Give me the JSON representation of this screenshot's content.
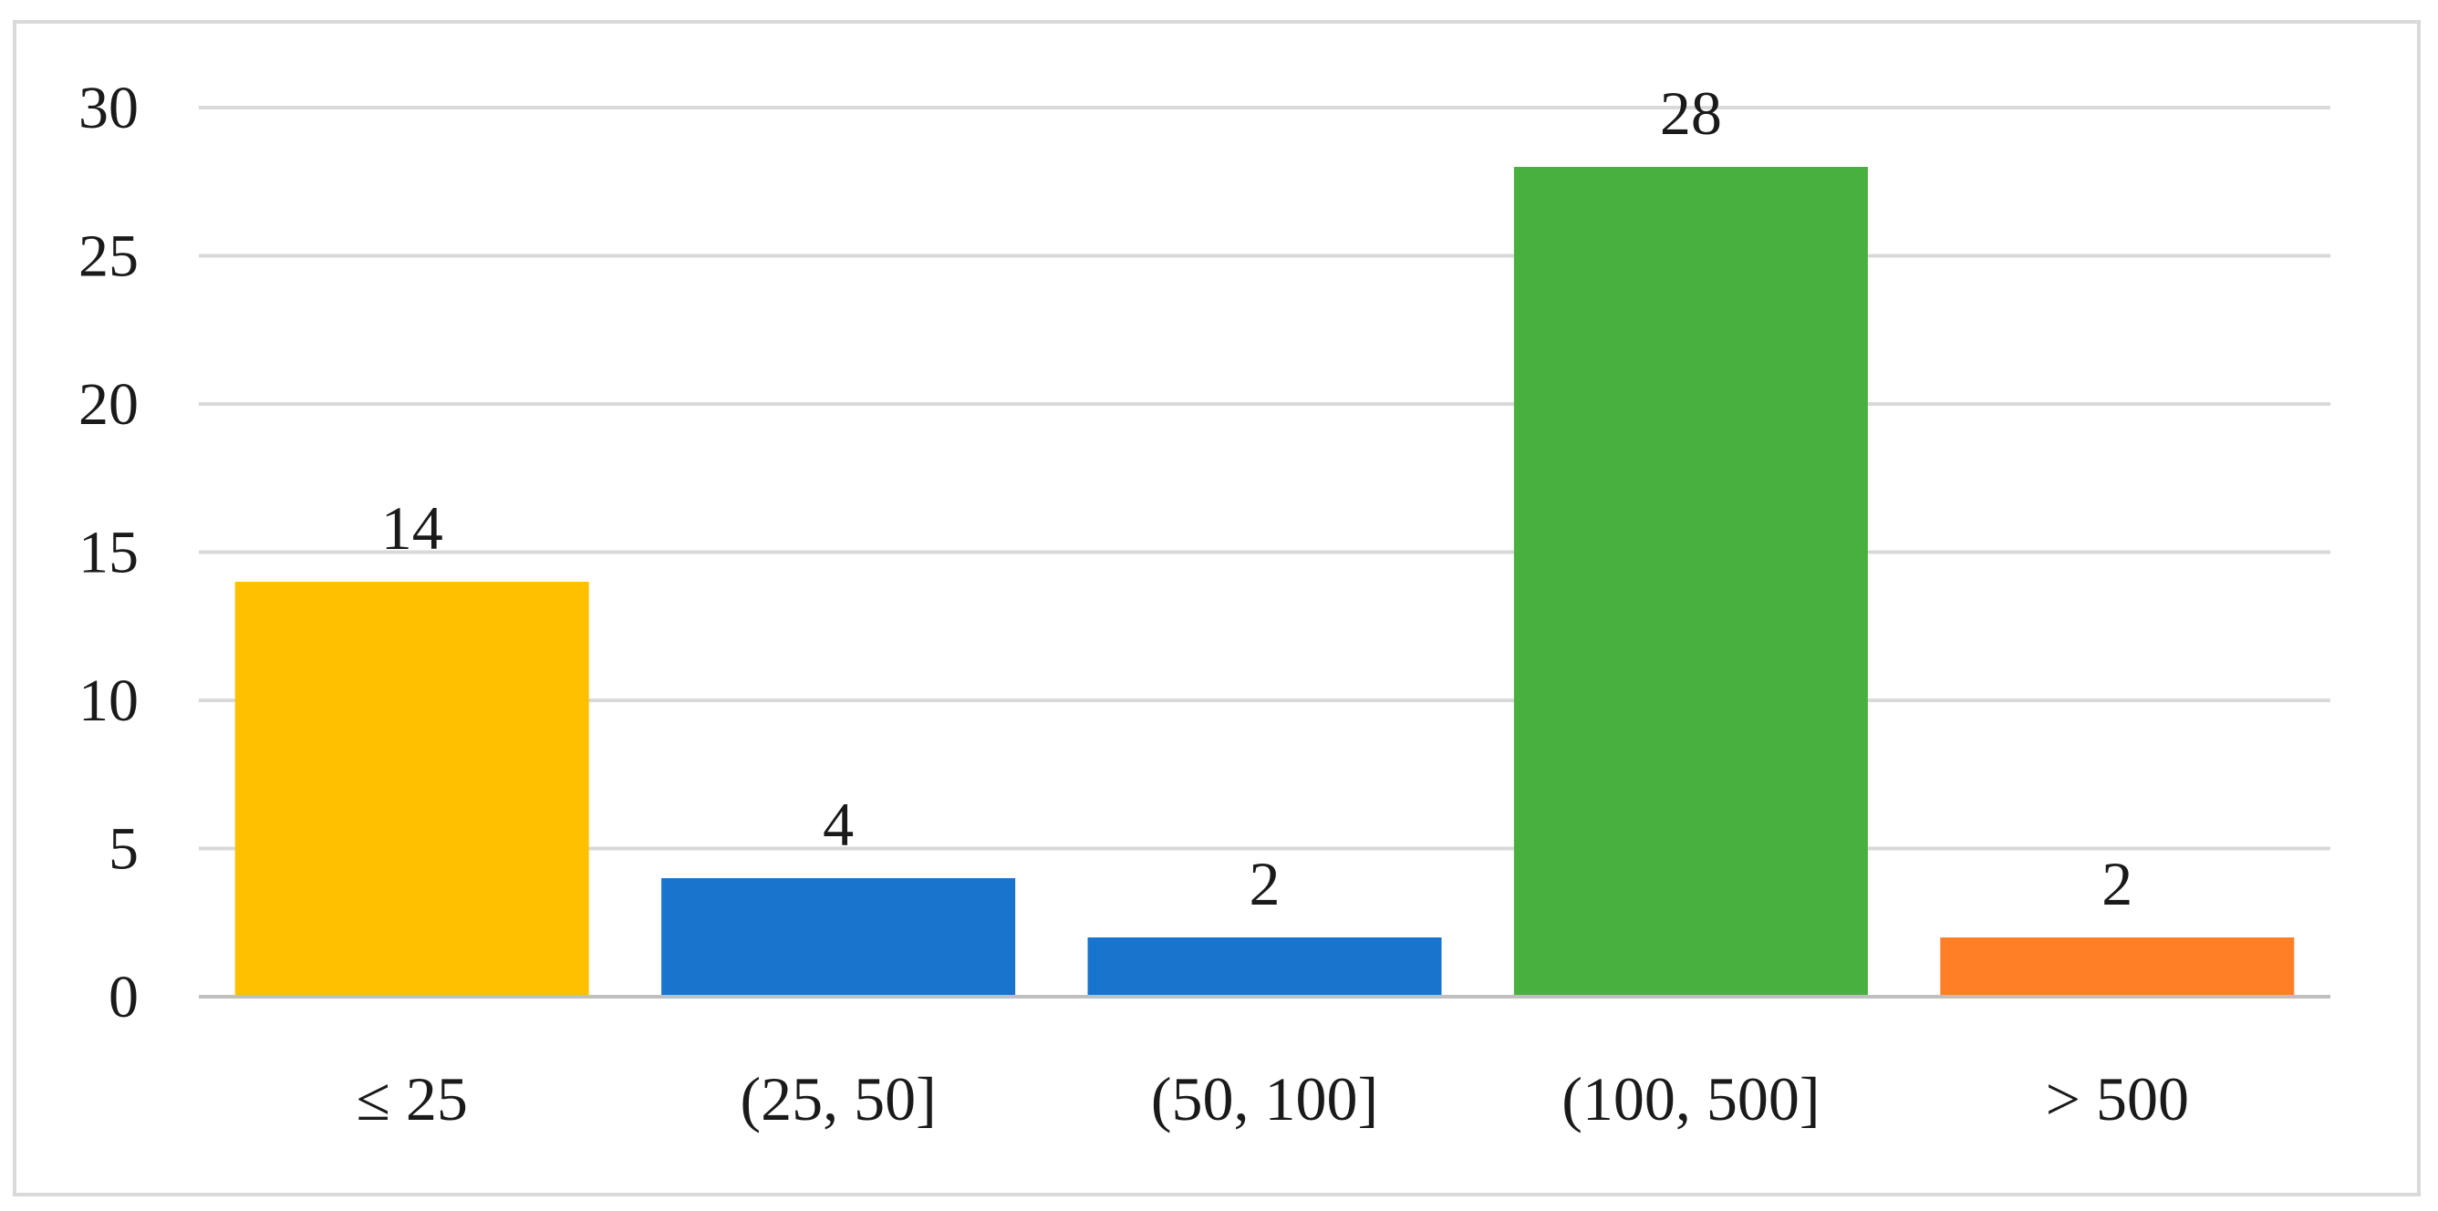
{
  "chart_data": {
    "type": "bar",
    "title": "",
    "xlabel": "",
    "ylabel": "",
    "categories": [
      "≤ 25",
      "(25, 50]",
      "(50, 100]",
      "(100, 500]",
      "> 500"
    ],
    "values": [
      14,
      4,
      2,
      28,
      2
    ],
    "data_labels": [
      "14",
      "4",
      "2",
      "28",
      "2"
    ],
    "bar_colors": [
      "#FFC000",
      "#1874CD",
      "#1874CD",
      "#48B03E",
      "#FF7F27"
    ],
    "ylim": [
      0,
      30
    ],
    "yticks": [
      0,
      5,
      10,
      15,
      20,
      25,
      30
    ],
    "ytick_labels": [
      "0",
      "5",
      "10",
      "15",
      "20",
      "25",
      "30"
    ],
    "grid": true,
    "legend": "none"
  }
}
